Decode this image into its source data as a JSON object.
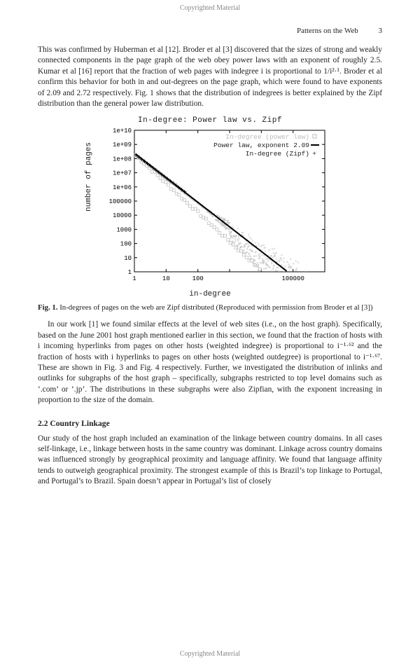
{
  "copyright": "Copyrighted Material",
  "running_head": {
    "title": "Patterns on the Web",
    "page": "3"
  },
  "para1": "This was confirmed by Huberman et al [12].  Broder et al [3] discovered that the sizes of strong and weakly connected components in the page graph of the web obey power laws with an exponent of roughly 2.5. Kumar et al [16] report that the fraction of web pages with indegree i is proportional to 1/i²·¹.  Broder et al confirm this behavior for both in and out-degrees on the page graph, which were found to have exponents of 2.09 and 2.72 respectively. Fig. 1 shows that the distribution of indegrees is better explained by the Zipf distribution than the general power law distribution.",
  "fig1": {
    "title": "In-degree: Power law vs. Zipf",
    "y_label": "number of pages",
    "x_label": "in-degree",
    "x_ticks": [
      "1",
      "10",
      "100",
      "",
      "",
      "100000"
    ],
    "y_ticks": [
      "1",
      "10",
      "100",
      "1000",
      "10000",
      "100000",
      "1e+06",
      "1e+07",
      "1e+08",
      "1e+09",
      "1e+10"
    ],
    "legend": {
      "a": "In-degree (power law)",
      "b": "Power law, exponent 2.09",
      "c": "In-degree (Zipf)",
      "b_marker": "——",
      "c_marker": "+",
      "a_marker": "□"
    },
    "power_law": {
      "x1_dec": 0.05,
      "y1_dec": 8.3,
      "x2_dec": 4.8,
      "y2_dec": 0.05
    }
  },
  "fig1_caption_lead": "Fig. 1.",
  "fig1_caption": " In-degrees of pages on the web are Zipf distributed (Reproduced with permission from Broder et al [3])",
  "para2": "In our work [1] we found similar effects at the level of web sites (i.e., on the host graph). Specifically, based on the June 2001 host graph mentioned earlier in this section, we found that the fraction of hosts with i incoming hyperlinks from pages on other hosts (weighted indegree) is proportional to i⁻¹·⁶² and the fraction of hosts with i hyperlinks to pages on other hosts (weighted outdegree) is proportional to i⁻¹·⁶⁷. These are shown in Fig. 3 and Fig. 4 respectively. Further, we investigated the distribution of inlinks and outlinks for subgraphs of the host graph – specifically, subgraphs restricted to top level domains such as ‘.com’ or ‘.jp’.  The distributions in these subgraphs were also Zipfian, with the exponent increasing in proportion to the size of the domain.",
  "sec22": "2.2   Country Linkage",
  "para3": "Our study of the host graph included an examination of the linkage between country domains. In all cases self-linkage, i.e., linkage between hosts in the same country was dominant. Linkage across country domains was influenced strongly by geographical proximity and language affinity. We found that language affinity tends to outweigh geographical proximity. The strongest example of this is Brazil’s top linkage to Portugal, and Portugal’s to Brazil. Spain doesn’t appear in Portugal’s list of closely"
}
